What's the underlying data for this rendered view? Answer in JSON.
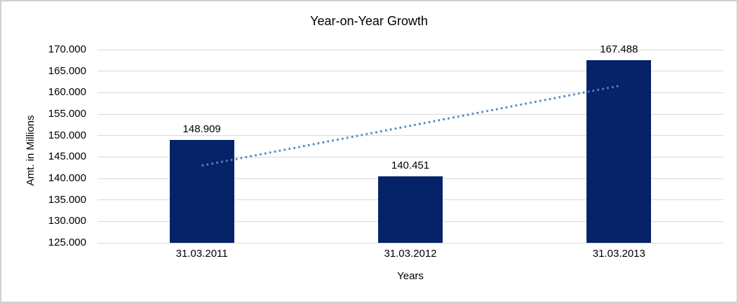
{
  "window": {
    "background": "#FFFFFF",
    "border_color": "#D0D0D0"
  },
  "chart_data": {
    "type": "bar",
    "title": "Year-on-Year Growth",
    "xlabel": "Years",
    "ylabel": "Amt. in Millions",
    "categories": [
      "31.03.2011",
      "31.03.2012",
      "31.03.2013"
    ],
    "values": [
      148.909,
      140.451,
      167.488
    ],
    "data_labels": [
      "148.909",
      "140.451",
      "167.488"
    ],
    "y_ticks": [
      "125.000",
      "130.000",
      "135.000",
      "140.000",
      "145.000",
      "150.000",
      "155.000",
      "160.000",
      "165.000",
      "170.000"
    ],
    "ylim": [
      125,
      170
    ],
    "grid": true,
    "legend": false,
    "bar_color": "#062268",
    "gridline_color": "#D9D9D9",
    "text_color": "#000000",
    "trendline": {
      "type": "linear",
      "style": "dotted",
      "color": "#4E86C6"
    }
  }
}
